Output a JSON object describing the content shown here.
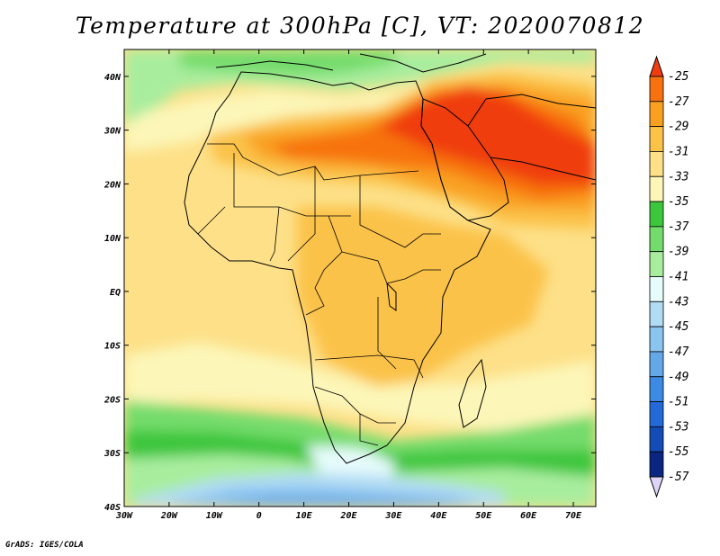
{
  "title": "Temperature at 300hPa [C], VT: 2020070812",
  "credit": "GrADS: IGES/COLA",
  "map": {
    "lon_range": [
      -30,
      75
    ],
    "lat_range": [
      -40,
      45
    ],
    "lon_ticks": [
      {
        "value": -30,
        "label": "30W"
      },
      {
        "value": -20,
        "label": "20W"
      },
      {
        "value": -10,
        "label": "10W"
      },
      {
        "value": 0,
        "label": "0"
      },
      {
        "value": 10,
        "label": "10E"
      },
      {
        "value": 20,
        "label": "20E"
      },
      {
        "value": 30,
        "label": "30E"
      },
      {
        "value": 40,
        "label": "40E"
      },
      {
        "value": 50,
        "label": "50E"
      },
      {
        "value": 60,
        "label": "60E"
      },
      {
        "value": 70,
        "label": "70E"
      }
    ],
    "lat_ticks": [
      {
        "value": 40,
        "label": "40N"
      },
      {
        "value": 30,
        "label": "30N"
      },
      {
        "value": 20,
        "label": "20N"
      },
      {
        "value": 10,
        "label": "10N"
      },
      {
        "value": 0,
        "label": "EQ"
      },
      {
        "value": -10,
        "label": "10S"
      },
      {
        "value": -20,
        "label": "20S"
      },
      {
        "value": -30,
        "label": "30S"
      },
      {
        "value": -40,
        "label": "40S"
      }
    ]
  },
  "colorbar": {
    "levels": [
      "-25",
      "-27",
      "-29",
      "-31",
      "-33",
      "-35",
      "-37",
      "-39",
      "-41",
      "-43",
      "-45",
      "-47",
      "-49",
      "-51",
      "-53",
      "-55",
      "-57"
    ],
    "colors": [
      "#f03c0e",
      "#f7720f",
      "#f9a020",
      "#fbc248",
      "#fde088",
      "#fcf6b8",
      "#3cc63c",
      "#74dc6c",
      "#a8ed9e",
      "#e6fbfb",
      "#b2dcf4",
      "#8cc4f0",
      "#64a8e8",
      "#3c8ae4",
      "#236ad8",
      "#144cb6",
      "#0a2680",
      "#0a1264"
    ]
  }
}
